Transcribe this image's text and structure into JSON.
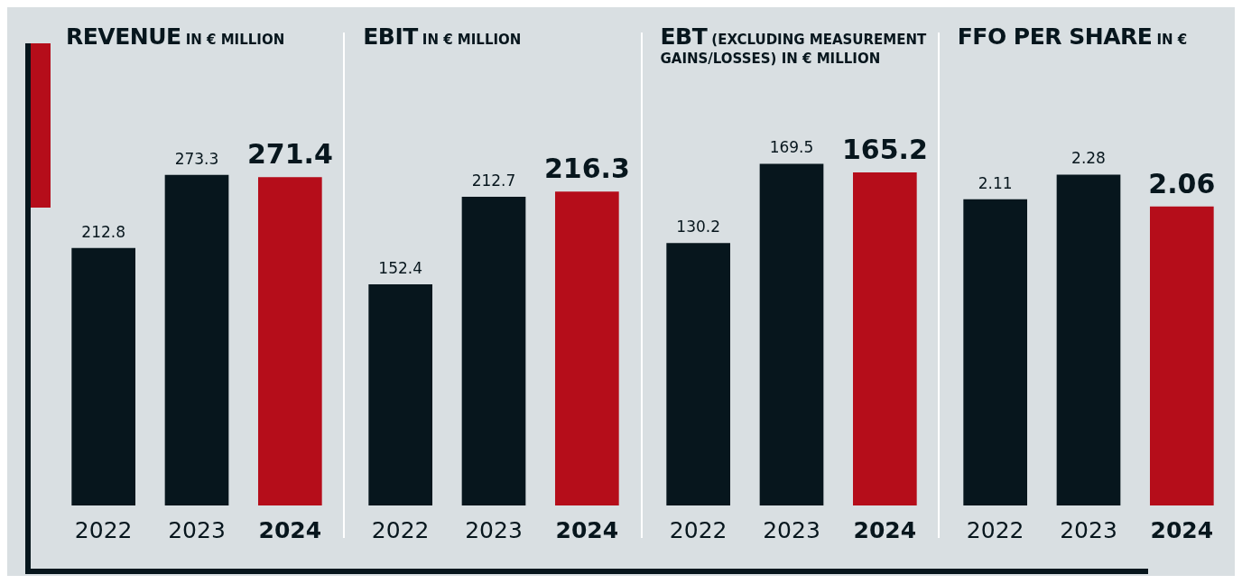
{
  "chart_data": [
    {
      "type": "bar",
      "title": "REVENUE",
      "subtitle": "IN € MILLION",
      "categories": [
        "2022",
        "2023",
        "2024"
      ],
      "values": [
        212.8,
        273.3,
        271.4
      ],
      "colors": [
        "#07161d",
        "#07161d",
        "#b50d1a"
      ],
      "data_labels": true,
      "grid": false,
      "legend": false
    },
    {
      "type": "bar",
      "title": "EBIT",
      "subtitle": "IN € MILLION",
      "categories": [
        "2022",
        "2023",
        "2024"
      ],
      "values": [
        152.4,
        212.7,
        216.3
      ],
      "colors": [
        "#07161d",
        "#07161d",
        "#b50d1a"
      ],
      "data_labels": true,
      "grid": false,
      "legend": false
    },
    {
      "type": "bar",
      "title": "EBT",
      "subtitle": "(EXCLUDING MEASUREMENT GAINS/LOSSES) IN € MILLION",
      "categories": [
        "2022",
        "2023",
        "2024"
      ],
      "values": [
        130.2,
        169.5,
        165.2
      ],
      "colors": [
        "#07161d",
        "#07161d",
        "#b50d1a"
      ],
      "data_labels": true,
      "grid": false,
      "legend": false
    },
    {
      "type": "bar",
      "title": "FFO PER SHARE",
      "subtitle": "IN €",
      "categories": [
        "2022",
        "2023",
        "2024"
      ],
      "values": [
        2.11,
        2.28,
        2.06
      ],
      "colors": [
        "#07161d",
        "#07161d",
        "#b50d1a"
      ],
      "data_labels": true,
      "grid": false,
      "legend": false
    }
  ]
}
